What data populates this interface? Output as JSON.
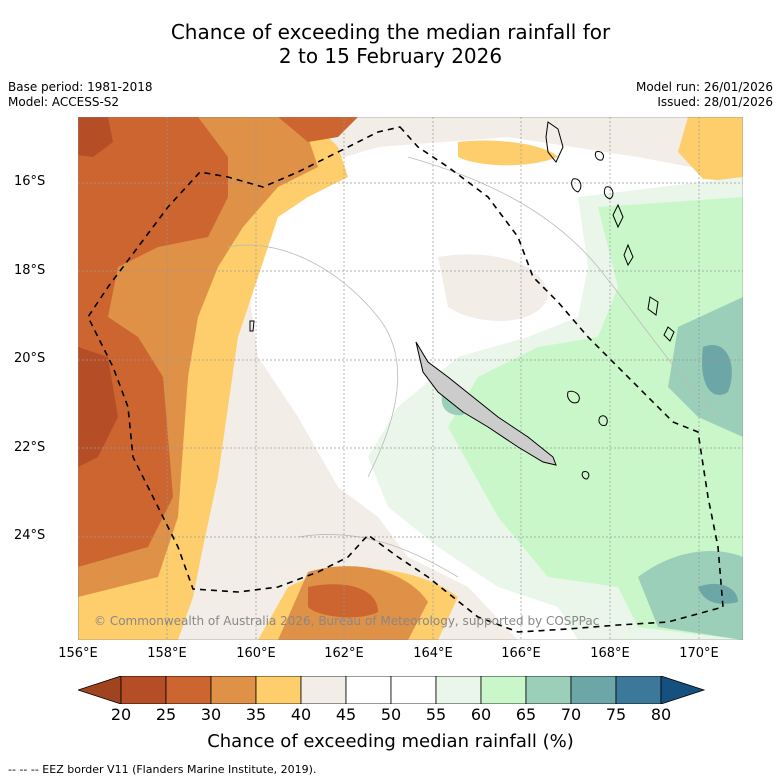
{
  "title": {
    "line1": "Chance of exceeding the median rainfall for",
    "line2": "2 to 15 February 2026"
  },
  "meta": {
    "base_period": "Base period: 1981-2018",
    "model": "Model: ACCESS-S2",
    "model_run": "Model run: 26/01/2026",
    "issued": "Issued: 28/01/2026"
  },
  "axes": {
    "lat_labels": [
      "16°S",
      "18°S",
      "20°S",
      "22°S",
      "24°S"
    ],
    "lon_labels": [
      "156°E",
      "158°E",
      "160°E",
      "162°E",
      "164°E",
      "166°E",
      "168°E",
      "170°E"
    ]
  },
  "colorbar": {
    "ticks": [
      "20",
      "25",
      "30",
      "35",
      "40",
      "45",
      "50",
      "55",
      "60",
      "65",
      "70",
      "75",
      "80"
    ],
    "colors": [
      "#a0431f",
      "#b54d27",
      "#cc6530",
      "#df9148",
      "#fdce6b",
      "#f2ede7",
      "#ffffff",
      "#ffffff",
      "#eaf6ea",
      "#caf7ca",
      "#9ccfb9",
      "#6da6a6",
      "#3c7899",
      "#15507e"
    ],
    "label": "Chance of exceeding median rainfall (%)"
  },
  "map": {
    "copyright": "© Commonwealth of Australia 2026, Bureau of Meteorology, supported by COSPPac",
    "colors": {
      "dark_brown": "#b54d27",
      "brown": "#cc6530",
      "orange": "#df9148",
      "yellow": "#fdce6b",
      "beige": "#f2ede7",
      "white": "#ffffff",
      "pale_green": "#eaf6ea",
      "light_green": "#caf7ca",
      "teal_light": "#9ccfb9",
      "teal": "#6da6a6"
    }
  },
  "footnote": "-- -- -- EEZ border V11 (Flanders Marine Institute, 2019)."
}
